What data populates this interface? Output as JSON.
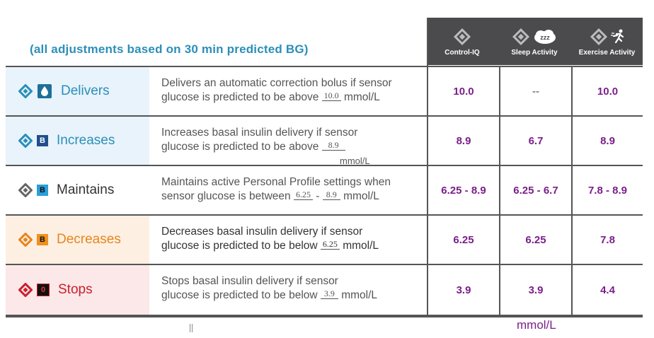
{
  "subtitle": "(all adjustments based on 30 min predicted BG)",
  "columns": [
    "Control-IQ",
    "Sleep Activity",
    "Exercise Activity"
  ],
  "sleep_badge": "zzz",
  "rows": [
    {
      "name": "Delivers",
      "badge": "",
      "desc_line1": "Delivers an automatic correction bolus if sensor",
      "desc_line2_a": "glucose is predicted to be above",
      "desc_val1": "10.0",
      "desc_line2_b": "mmol/L",
      "values": [
        "10.0",
        "--",
        "10.0"
      ]
    },
    {
      "name": "Increases",
      "badge": "B",
      "desc_line1": "Increases basal insulin delivery if sensor",
      "desc_line2_a": "glucose is predicted to be above",
      "desc_val1": "8.9",
      "desc_overflow": "mmol/L",
      "values": [
        "8.9",
        "6.7",
        "8.9"
      ]
    },
    {
      "name": "Maintains",
      "badge": "B",
      "desc_line1": "Maintains active Personal Profile settings when",
      "desc_line2_a": "sensor glucose is between",
      "desc_val1": "6.25",
      "desc_sep": "-",
      "desc_val2": "8.9",
      "desc_line2_b": "mmol/L",
      "values": [
        "6.25 - 8.9",
        "6.25 - 6.7",
        "7.8 - 8.9"
      ]
    },
    {
      "name": "Decreases",
      "badge": "B",
      "desc_line1": "Decreases basal insulin delivery if sensor",
      "desc_line2_a": "glucose is predicted to be below",
      "desc_val1": "6.25",
      "desc_line2_b": "mmol/L",
      "values": [
        "6.25",
        "6.25",
        "7.8"
      ]
    },
    {
      "name": "Stops",
      "badge": "0",
      "desc_line1": "Stops basal insulin delivery if sensor",
      "desc_line2_a": "glucose is predicted to be below",
      "desc_val1": "3.9",
      "desc_line2_b": "mmol/L",
      "values": [
        "3.9",
        "3.9",
        "4.4"
      ]
    }
  ],
  "footer_unit": "mmol/L",
  "colors": {
    "brand_blue": "#2b8fb8",
    "value_purple": "#7b1f8a",
    "row_blue_bg": "#e8f3fb",
    "row_orange_bg": "#fdf0e2",
    "row_red_bg": "#fce8e8",
    "orange": "#e8841e",
    "red": "#c8202f",
    "header_bg": "#4b4b4d"
  }
}
